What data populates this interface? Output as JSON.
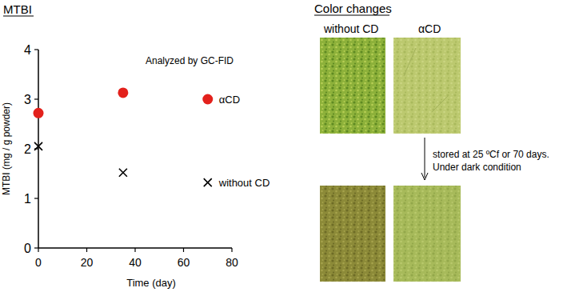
{
  "chart_data": {
    "type": "scatter",
    "title": "MTBI",
    "xlabel": "Time (day)",
    "ylabel": "MTBI (mg / g powder)",
    "xlim": [
      0,
      80
    ],
    "xticks": [
      0,
      20,
      40,
      60,
      80
    ],
    "ylim": [
      0,
      4
    ],
    "yticks": [
      0,
      1,
      2,
      3,
      4
    ],
    "grid": false,
    "series": [
      {
        "name": "αCD",
        "color": "#e3211c",
        "marker": "circle",
        "x": [
          0,
          35,
          70
        ],
        "values": [
          2.72,
          3.13,
          3.0
        ]
      },
      {
        "name": "without CD",
        "color": "#000000",
        "marker": "x",
        "x": [
          0,
          35,
          70
        ],
        "values": [
          2.05,
          1.52,
          1.32
        ]
      }
    ],
    "annotations": [
      "Analyzed by GC-FID",
      "Color changes",
      "without CD",
      "αCD",
      "stored at 25 ºCf or 70 days.",
      "Under dark condition"
    ]
  }
}
